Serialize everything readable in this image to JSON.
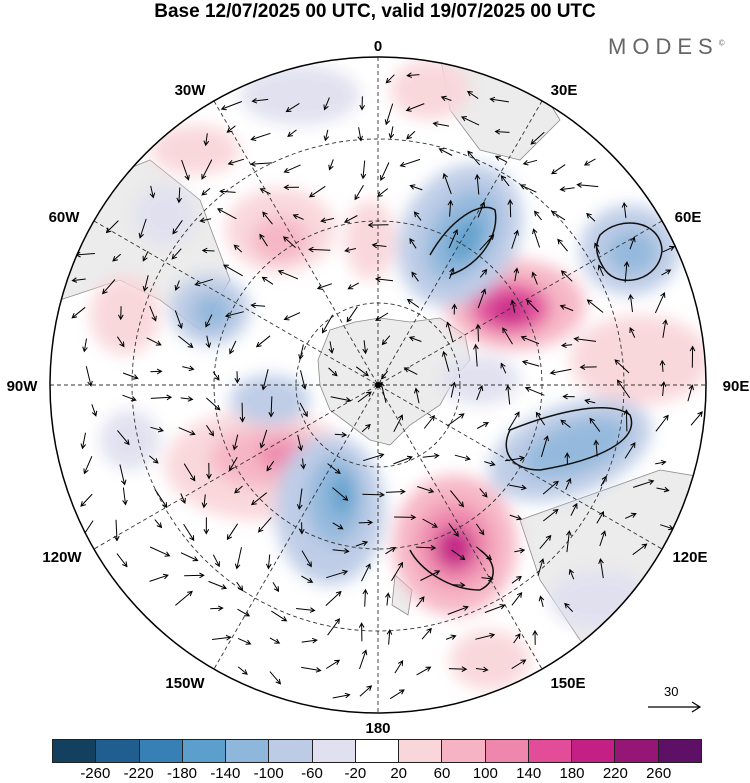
{
  "title": "Base 12/07/2025 00 UTC, valid 19/07/2025 00 UTC",
  "brand": "MODES",
  "brand_mark": "©",
  "longitude_labels": {
    "top": "0",
    "top_right": "30E",
    "right_upper": "60E",
    "right": "90E",
    "right_lower": "120E",
    "bottom_right": "150E",
    "bottom": "180",
    "bottom_left": "150W",
    "left_lower": "120W",
    "left": "90W",
    "left_upper": "60W",
    "top_left": "30W"
  },
  "reference_vector": {
    "label": "30"
  },
  "colorbar": {
    "colors": [
      "#13405f",
      "#1f5e8f",
      "#3780b6",
      "#5d9fcc",
      "#8fb6db",
      "#bccbe6",
      "#e0e0f0",
      "#ffffff",
      "#f9d6da",
      "#f6b3c3",
      "#ef86ac",
      "#e24c99",
      "#c41f84",
      "#961675",
      "#5e0f66"
    ],
    "ticks": [
      "-260",
      "-220",
      "-180",
      "-140",
      "-100",
      "-60",
      "-20",
      "20",
      "60",
      "100",
      "140",
      "180",
      "220",
      "260"
    ]
  }
}
